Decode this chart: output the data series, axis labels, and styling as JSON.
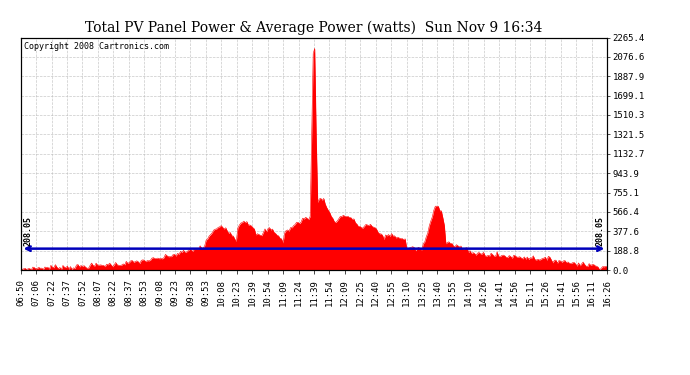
{
  "title": "Total PV Panel Power & Average Power (watts)  Sun Nov 9 16:34",
  "copyright": "Copyright 2008 Cartronics.com",
  "avg_value": 208.05,
  "yticks": [
    0.0,
    188.8,
    377.6,
    566.4,
    755.1,
    943.9,
    1132.7,
    1321.5,
    1510.3,
    1699.1,
    1887.9,
    2076.6,
    2265.4
  ],
  "ymax": 2265.4,
  "ymin": 0.0,
  "line_color": "#0000bb",
  "fill_color": "#ff0000",
  "background_color": "#ffffff",
  "grid_color": "#bbbbbb",
  "title_fontsize": 10,
  "tick_fontsize": 6.5,
  "copyright_fontsize": 6,
  "x_labels": [
    "06:50",
    "07:06",
    "07:22",
    "07:37",
    "07:52",
    "08:07",
    "08:22",
    "08:37",
    "08:53",
    "09:08",
    "09:23",
    "09:38",
    "09:53",
    "10:08",
    "10:23",
    "10:39",
    "10:54",
    "11:09",
    "11:24",
    "11:39",
    "11:54",
    "12:09",
    "12:25",
    "12:40",
    "12:55",
    "13:10",
    "13:25",
    "13:40",
    "13:55",
    "14:10",
    "14:26",
    "14:41",
    "14:56",
    "15:11",
    "15:26",
    "15:41",
    "15:56",
    "16:11",
    "16:26"
  ]
}
